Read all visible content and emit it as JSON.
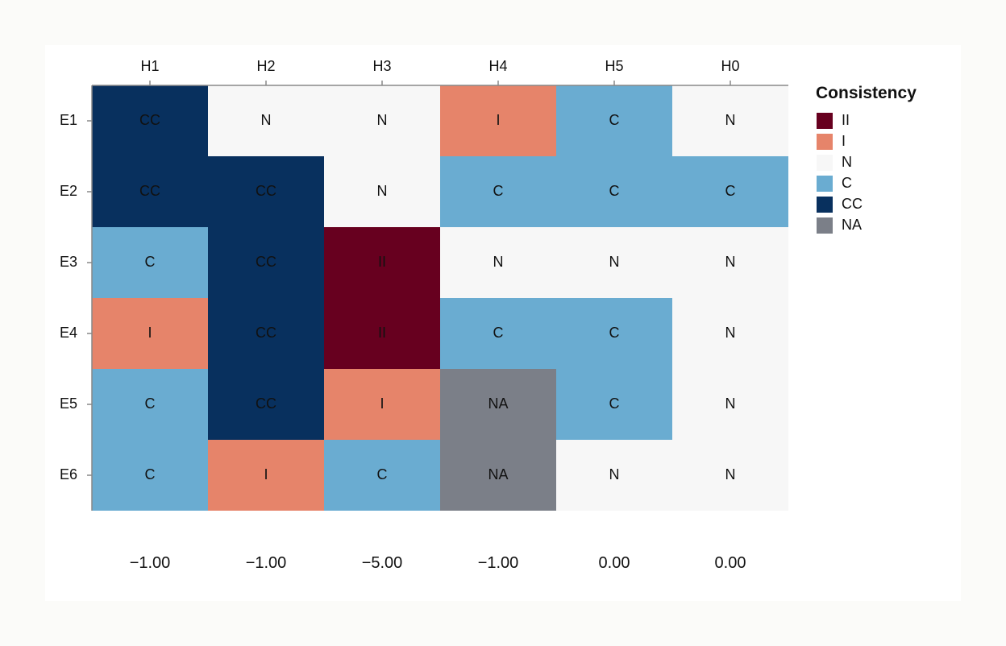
{
  "chart_data": {
    "type": "heatmap",
    "columns": [
      "H1",
      "H2",
      "H3",
      "H4",
      "H5",
      "H0"
    ],
    "rows": [
      "E1",
      "E2",
      "E3",
      "E4",
      "E5",
      "E6"
    ],
    "cells": [
      [
        "CC",
        "N",
        "N",
        "I",
        "C",
        "N"
      ],
      [
        "CC",
        "CC",
        "N",
        "C",
        "C",
        "C"
      ],
      [
        "C",
        "CC",
        "II",
        "N",
        "N",
        "N"
      ],
      [
        "I",
        "CC",
        "II",
        "C",
        "C",
        "N"
      ],
      [
        "C",
        "CC",
        "I",
        "NA",
        "C",
        "N"
      ],
      [
        "C",
        "I",
        "C",
        "NA",
        "N",
        "N"
      ]
    ],
    "column_scores": [
      "−1.00",
      "−1.00",
      "−5.00",
      "−1.00",
      "0.00",
      "0.00"
    ],
    "legend": {
      "title": "Consistency",
      "position": "right",
      "items": [
        {
          "label": "II",
          "color": "#67001f"
        },
        {
          "label": "I",
          "color": "#e6846a"
        },
        {
          "label": "N",
          "color": "#f7f7f7"
        },
        {
          "label": "C",
          "color": "#6aacd1"
        },
        {
          "label": "CC",
          "color": "#08305e"
        },
        {
          "label": "NA",
          "color": "#7b7f88"
        }
      ]
    }
  }
}
